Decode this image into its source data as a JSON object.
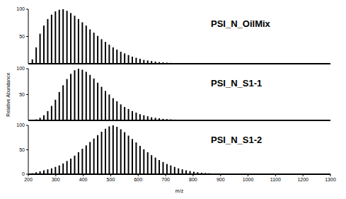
{
  "chart_data": [
    {
      "type": "bar",
      "title": "PSI_N_OilMix",
      "color": "#000000",
      "tick_labels": "y",
      "x": [
        200,
        214,
        228,
        242,
        256,
        270,
        284,
        298,
        312,
        326,
        340,
        354,
        368,
        382,
        396,
        410,
        424,
        438,
        452,
        466,
        480,
        494,
        508,
        522,
        536,
        550,
        564,
        578,
        592,
        606,
        620,
        634,
        648,
        662,
        676,
        690,
        704,
        718,
        732,
        746,
        760,
        774,
        788,
        802,
        816,
        830,
        844,
        858,
        872,
        886,
        900
      ],
      "values": [
        0,
        8,
        30,
        55,
        70,
        82,
        90,
        96,
        99,
        100,
        97,
        93,
        88,
        82,
        76,
        70,
        63,
        57,
        51,
        45,
        40,
        35,
        30,
        26,
        22,
        19,
        16,
        13,
        11,
        9,
        7,
        6,
        5,
        4,
        3,
        2.5,
        2,
        1.5,
        1.2,
        1,
        0.8,
        0.6,
        0.5,
        0.4,
        0.3,
        0.2,
        0.2,
        0.1,
        0.1,
        0,
        0
      ],
      "xlim": [
        200,
        1300
      ],
      "xticks": [
        200,
        300,
        400,
        500,
        600,
        700,
        800,
        900,
        1000,
        1100,
        1200,
        1300
      ],
      "ylim": [
        0,
        100
      ],
      "yticks": [
        0,
        50,
        100
      ]
    },
    {
      "type": "bar",
      "title": "PSI_N_S1-1",
      "color": "#000000",
      "tick_labels": "y",
      "y_label": "Relative Abundance",
      "x": [
        200,
        214,
        228,
        242,
        256,
        270,
        284,
        298,
        312,
        326,
        340,
        354,
        368,
        382,
        396,
        410,
        424,
        438,
        452,
        466,
        480,
        494,
        508,
        522,
        536,
        550,
        564,
        578,
        592,
        606,
        620,
        634,
        648,
        662,
        676,
        690,
        704,
        718,
        732,
        746,
        760,
        774,
        788,
        802,
        816,
        830,
        844,
        858,
        872,
        886,
        900
      ],
      "values": [
        0,
        0,
        2,
        5,
        10,
        18,
        28,
        40,
        55,
        68,
        80,
        90,
        97,
        100,
        98,
        94,
        88,
        81,
        73,
        65,
        57,
        50,
        43,
        37,
        31,
        26,
        22,
        18,
        15,
        12,
        10,
        8,
        6,
        5,
        4,
        3,
        2.5,
        2,
        1.5,
        1.2,
        1,
        0.8,
        0.6,
        0.5,
        0.4,
        0.3,
        0.2,
        0.2,
        0.1,
        0.1,
        0
      ],
      "xlim": [
        200,
        1300
      ],
      "xticks": [
        200,
        300,
        400,
        500,
        600,
        700,
        800,
        900,
        1000,
        1100,
        1200,
        1300
      ],
      "ylim": [
        0,
        100
      ],
      "yticks": [
        0,
        50,
        100
      ]
    },
    {
      "type": "bar",
      "title": "PSI_N_S1-2",
      "color": "#000000",
      "x_label": "m/z",
      "x": [
        200,
        214,
        228,
        242,
        256,
        270,
        284,
        298,
        312,
        326,
        340,
        354,
        368,
        382,
        396,
        410,
        424,
        438,
        452,
        466,
        480,
        494,
        508,
        522,
        536,
        550,
        564,
        578,
        592,
        606,
        620,
        634,
        648,
        662,
        676,
        690,
        704,
        718,
        732,
        746,
        760,
        774,
        788,
        802,
        816,
        830,
        844,
        858,
        872,
        886,
        900
      ],
      "values": [
        0,
        2,
        4,
        6,
        8,
        10,
        12,
        15,
        18,
        22,
        27,
        32,
        38,
        45,
        52,
        59,
        66,
        73,
        80,
        87,
        93,
        98,
        100,
        97,
        92,
        86,
        79,
        72,
        65,
        58,
        51,
        45,
        39,
        34,
        29,
        25,
        21,
        18,
        15,
        12,
        10,
        8,
        6.5,
        5,
        4,
        3,
        2.5,
        2,
        1.5,
        1,
        0.8
      ],
      "xlim": [
        200,
        1300
      ],
      "xticks": [
        200,
        300,
        400,
        500,
        600,
        700,
        800,
        900,
        1000,
        1100,
        1200,
        1300
      ],
      "ylim": [
        0,
        100
      ],
      "yticks": [
        0,
        50,
        100
      ]
    }
  ]
}
